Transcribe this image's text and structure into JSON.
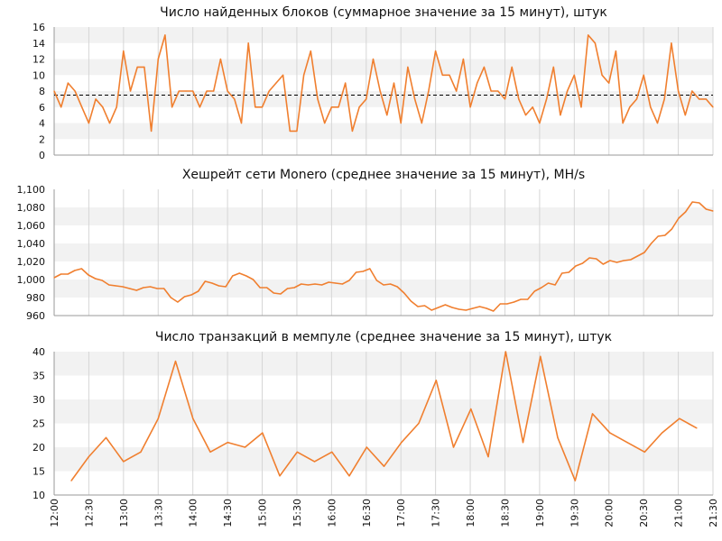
{
  "colors": {
    "line": "#f07f2f",
    "band": "#f2f2f2",
    "vgrid": "#d6d6d6",
    "axis": "#9a9a9a",
    "average": "#000000",
    "text": "#111111"
  },
  "x_axis": {
    "ticks": [
      "12:00",
      "12:30",
      "13:00",
      "13:30",
      "14:00",
      "14:30",
      "15:00",
      "15:30",
      "16:00",
      "16:30",
      "17:00",
      "17:30",
      "18:00",
      "18:30",
      "19:00",
      "19:30",
      "20:00",
      "20:30",
      "21:00",
      "21:30"
    ]
  },
  "chart_data": [
    {
      "type": "line",
      "title": "Число найденных блоков (суммарное значение за 15 минут), штук",
      "ylim": [
        0,
        16
      ],
      "yticks": [
        0,
        2,
        4,
        6,
        8,
        10,
        12,
        14,
        16
      ],
      "x_start": "12:00",
      "x_end": "21:30",
      "grid": true,
      "reference_line": {
        "value": 7.5,
        "style": "dashed"
      },
      "series": [
        {
          "values": [
            8,
            6,
            9,
            8,
            6,
            4,
            7,
            6,
            4,
            6,
            13,
            8,
            11,
            11,
            3,
            12,
            15,
            6,
            8,
            8,
            8,
            6,
            8,
            8,
            12,
            8,
            7,
            4,
            14,
            6,
            6,
            8,
            9,
            10,
            3,
            3,
            10,
            13,
            7,
            4,
            6,
            6,
            9,
            3,
            6,
            7,
            12,
            8,
            5,
            9,
            4,
            11,
            7,
            4,
            8,
            13,
            10,
            10,
            8,
            12,
            6,
            9,
            11,
            8,
            8,
            7,
            11,
            7,
            5,
            6,
            4,
            7,
            11,
            5,
            8,
            10,
            6,
            15,
            14,
            10,
            9,
            13,
            4,
            6,
            7,
            10,
            6,
            4,
            7,
            14,
            8,
            5,
            8,
            7,
            7,
            6
          ]
        }
      ]
    },
    {
      "type": "line",
      "title": "Хешрейт сети Monero (среднее значение за 15 минут), MH/s",
      "ylim": [
        960,
        1100
      ],
      "yticks": [
        960,
        980,
        1000,
        1020,
        1040,
        1060,
        1080,
        1100
      ],
      "ytick_labels": [
        "960",
        "980",
        "1,000",
        "1,020",
        "1,040",
        "1,060",
        "1,080",
        "1,100"
      ],
      "x_start": "12:00",
      "x_end": "21:30",
      "grid": true,
      "series": [
        {
          "values": [
            1002,
            1006,
            1006,
            1010,
            1012,
            1005,
            1001,
            999,
            994,
            993,
            992,
            990,
            988,
            991,
            992,
            990,
            990,
            980,
            975,
            981,
            983,
            987,
            998,
            996,
            993,
            992,
            1004,
            1007,
            1004,
            1000,
            991,
            991,
            985,
            984,
            990,
            991,
            995,
            994,
            995,
            994,
            997,
            996,
            995,
            999,
            1008,
            1009,
            1012,
            999,
            994,
            995,
            992,
            985,
            976,
            970,
            971,
            966,
            969,
            972,
            969,
            967,
            966,
            968,
            970,
            968,
            965,
            973,
            973,
            975,
            978,
            978,
            987,
            991,
            996,
            994,
            1007,
            1008,
            1015,
            1018,
            1024,
            1023,
            1017,
            1021,
            1019,
            1021,
            1022,
            1026,
            1030,
            1040,
            1048,
            1049,
            1056,
            1068,
            1075,
            1086,
            1085,
            1078,
            1076
          ]
        }
      ]
    },
    {
      "type": "line",
      "title": "Число транзакций в мемпуле (среднее значение за 15 минут), штук",
      "ylim": [
        10,
        40
      ],
      "yticks": [
        10,
        15,
        20,
        25,
        30,
        35,
        40
      ],
      "x_start": "12:00",
      "x_end": "21:30",
      "grid": true,
      "series": [
        {
          "values": [
            13,
            18,
            22,
            17,
            19,
            26,
            38,
            26,
            19,
            21,
            20,
            23,
            14,
            19,
            17,
            19,
            14,
            20,
            16,
            21,
            25,
            34,
            20,
            28,
            18,
            40,
            21,
            39,
            22,
            13,
            27,
            23,
            21,
            19,
            23,
            26,
            24
          ]
        }
      ]
    }
  ]
}
